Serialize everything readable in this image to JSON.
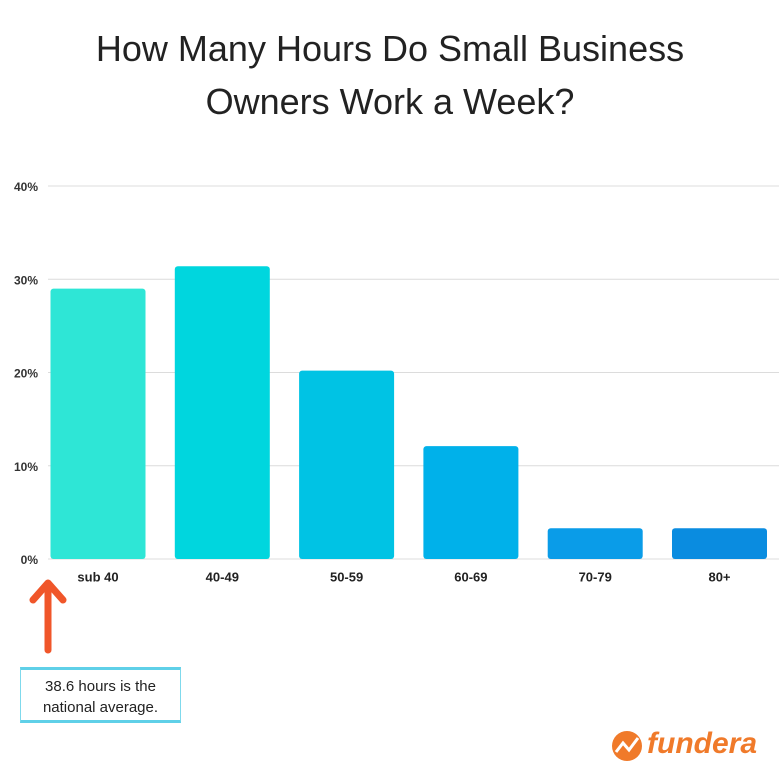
{
  "chart_data": {
    "type": "bar",
    "title": "How Many Hours Do Small Business Owners Work a Week?",
    "categories": [
      "sub 40",
      "40-49",
      "50-59",
      "60-69",
      "70-79",
      "80+"
    ],
    "values": [
      29,
      31.4,
      20.2,
      12.1,
      3.3,
      3.3
    ],
    "colors": [
      "#2ee6d6",
      "#00d6de",
      "#00c3e4",
      "#00b1ea",
      "#0a9ce8",
      "#0a8ce0"
    ],
    "ylim": [
      0,
      40
    ],
    "yticks": [
      {
        "value": 0,
        "label": "0%"
      },
      {
        "value": 10,
        "label": "10%"
      },
      {
        "value": 20,
        "label": "20%"
      },
      {
        "value": 30,
        "label": "30%"
      },
      {
        "value": 40,
        "label": "40%"
      }
    ],
    "grid": true,
    "annotation": "38.6 hours is the national average."
  },
  "logo": "fundera"
}
